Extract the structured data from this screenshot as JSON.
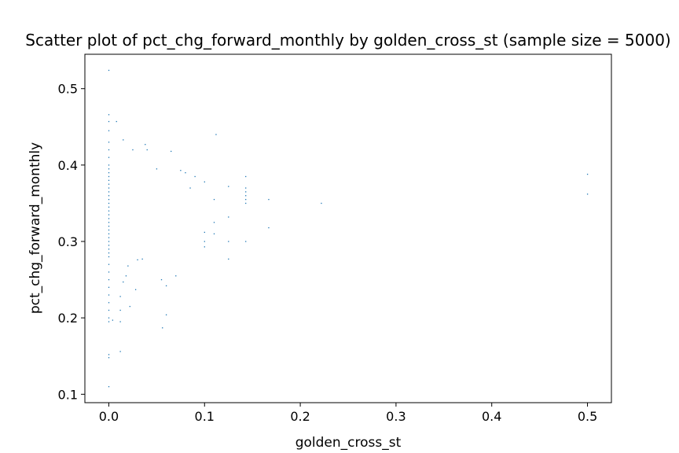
{
  "chart_data": {
    "type": "scatter",
    "title": "Scatter plot of pct_chg_forward_monthly by golden_cross_st (sample size = 5000)",
    "xlabel": "golden_cross_st",
    "ylabel": "pct_chg_forward_monthly",
    "xlim": [
      -0.025,
      0.525
    ],
    "ylim": [
      0.089,
      0.545
    ],
    "x_ticks": [
      0.0,
      0.1,
      0.2,
      0.3,
      0.4,
      0.5
    ],
    "x_tick_labels": [
      "0.0",
      "0.1",
      "0.2",
      "0.3",
      "0.4",
      "0.5"
    ],
    "y_ticks": [
      0.1,
      0.2,
      0.3,
      0.4,
      0.5
    ],
    "y_tick_labels": [
      "0.1",
      "0.2",
      "0.3",
      "0.4",
      "0.5"
    ],
    "grid": false,
    "marker_color": "#1f77b4",
    "series": [
      {
        "points": [
          [
            0.0,
            0.524
          ],
          [
            0.0,
            0.466
          ],
          [
            0.0,
            0.457
          ],
          [
            0.0,
            0.445
          ],
          [
            0.0,
            0.43
          ],
          [
            0.0,
            0.42
          ],
          [
            0.0,
            0.41
          ],
          [
            0.0,
            0.4
          ],
          [
            0.0,
            0.395
          ],
          [
            0.0,
            0.39
          ],
          [
            0.0,
            0.385
          ],
          [
            0.0,
            0.38
          ],
          [
            0.0,
            0.375
          ],
          [
            0.0,
            0.37
          ],
          [
            0.0,
            0.365
          ],
          [
            0.0,
            0.36
          ],
          [
            0.0,
            0.355
          ],
          [
            0.0,
            0.35
          ],
          [
            0.0,
            0.345
          ],
          [
            0.0,
            0.34
          ],
          [
            0.0,
            0.335
          ],
          [
            0.0,
            0.33
          ],
          [
            0.0,
            0.325
          ],
          [
            0.0,
            0.32
          ],
          [
            0.0,
            0.315
          ],
          [
            0.0,
            0.31
          ],
          [
            0.0,
            0.305
          ],
          [
            0.0,
            0.3
          ],
          [
            0.0,
            0.295
          ],
          [
            0.0,
            0.29
          ],
          [
            0.0,
            0.285
          ],
          [
            0.0,
            0.28
          ],
          [
            0.0,
            0.27
          ],
          [
            0.0,
            0.26
          ],
          [
            0.0,
            0.25
          ],
          [
            0.0,
            0.24
          ],
          [
            0.0,
            0.23
          ],
          [
            0.0,
            0.22
          ],
          [
            0.0,
            0.21
          ],
          [
            0.0,
            0.2
          ],
          [
            0.0,
            0.195
          ],
          [
            0.0,
            0.152
          ],
          [
            0.0,
            0.148
          ],
          [
            0.0,
            0.11
          ],
          [
            0.004,
            0.197
          ],
          [
            0.008,
            0.457
          ],
          [
            0.012,
            0.156
          ],
          [
            0.012,
            0.195
          ],
          [
            0.012,
            0.21
          ],
          [
            0.012,
            0.228
          ],
          [
            0.015,
            0.433
          ],
          [
            0.015,
            0.247
          ],
          [
            0.018,
            0.255
          ],
          [
            0.02,
            0.268
          ],
          [
            0.022,
            0.215
          ],
          [
            0.025,
            0.42
          ],
          [
            0.028,
            0.237
          ],
          [
            0.03,
            0.276
          ],
          [
            0.035,
            0.277
          ],
          [
            0.038,
            0.427
          ],
          [
            0.04,
            0.42
          ],
          [
            0.05,
            0.395
          ],
          [
            0.055,
            0.25
          ],
          [
            0.056,
            0.187
          ],
          [
            0.06,
            0.242
          ],
          [
            0.06,
            0.204
          ],
          [
            0.065,
            0.418
          ],
          [
            0.07,
            0.255
          ],
          [
            0.075,
            0.393
          ],
          [
            0.08,
            0.39
          ],
          [
            0.085,
            0.37
          ],
          [
            0.09,
            0.385
          ],
          [
            0.1,
            0.378
          ],
          [
            0.1,
            0.3
          ],
          [
            0.1,
            0.312
          ],
          [
            0.1,
            0.293
          ],
          [
            0.11,
            0.355
          ],
          [
            0.11,
            0.325
          ],
          [
            0.11,
            0.31
          ],
          [
            0.112,
            0.44
          ],
          [
            0.125,
            0.372
          ],
          [
            0.125,
            0.3
          ],
          [
            0.125,
            0.277
          ],
          [
            0.125,
            0.332
          ],
          [
            0.143,
            0.385
          ],
          [
            0.143,
            0.37
          ],
          [
            0.143,
            0.365
          ],
          [
            0.143,
            0.36
          ],
          [
            0.143,
            0.355
          ],
          [
            0.143,
            0.35
          ],
          [
            0.143,
            0.3
          ],
          [
            0.167,
            0.355
          ],
          [
            0.167,
            0.318
          ],
          [
            0.222,
            0.35
          ],
          [
            0.5,
            0.388
          ],
          [
            0.5,
            0.362
          ]
        ]
      }
    ]
  }
}
